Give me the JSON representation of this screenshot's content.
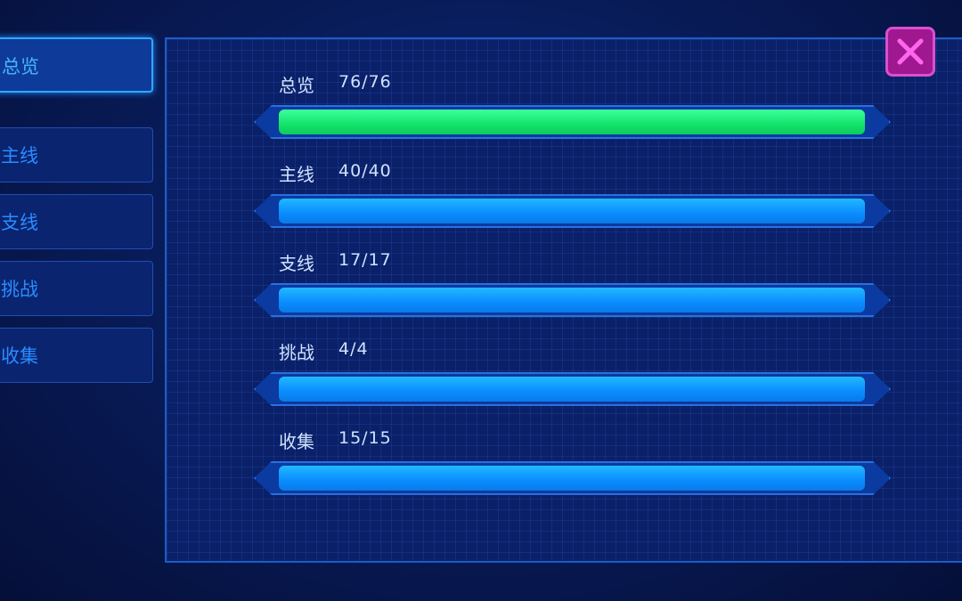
{
  "tabs": [
    "总览",
    "主线",
    "支线",
    "挑战",
    "收集"
  ],
  "rows": [
    {
      "label": "总览",
      "progress": "76/76"
    },
    {
      "label": "主线",
      "progress": "40/40"
    },
    {
      "label": "支线",
      "progress": "17/17"
    },
    {
      "label": "挑战",
      "progress": "4/4"
    },
    {
      "label": "收集",
      "progress": "15/15"
    }
  ]
}
